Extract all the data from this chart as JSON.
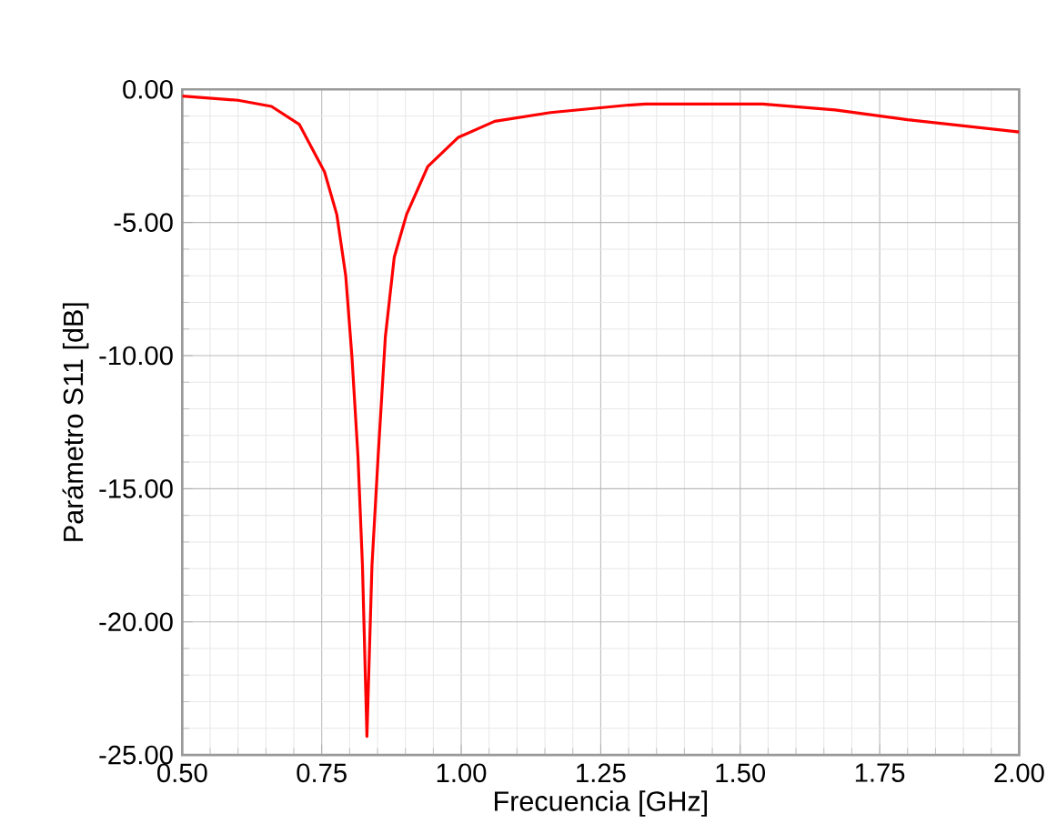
{
  "chart_data": {
    "type": "line",
    "xlabel": "Frecuencia [GHz]",
    "ylabel": "Parámetro S11 [dB]",
    "xlim": [
      0.5,
      2.0
    ],
    "ylim": [
      -25,
      0
    ],
    "xticks": [
      {
        "value": 0.5,
        "label": "0.50"
      },
      {
        "value": 0.75,
        "label": "0.75"
      },
      {
        "value": 1.0,
        "label": "1.00"
      },
      {
        "value": 1.25,
        "label": "1.25"
      },
      {
        "value": 1.5,
        "label": "1.50"
      },
      {
        "value": 1.75,
        "label": "1.75"
      },
      {
        "value": 2.0,
        "label": "2.00"
      }
    ],
    "yticks": [
      {
        "value": -25,
        "label": "-25.00"
      },
      {
        "value": -20,
        "label": "-20.00"
      },
      {
        "value": -15,
        "label": "-15.00"
      },
      {
        "value": -10,
        "label": "-10.00"
      },
      {
        "value": -5,
        "label": "-5.00"
      },
      {
        "value": 0,
        "label": "0.00"
      }
    ],
    "grid": true,
    "marker": "none",
    "line_style": "solid",
    "series": [
      {
        "color": "#ff0000",
        "x": [
          0.5,
          0.6,
          0.66,
          0.71,
          0.755,
          0.777,
          0.793,
          0.804,
          0.815,
          0.823,
          0.831,
          0.84,
          0.851,
          0.864,
          0.88,
          0.902,
          0.94,
          0.995,
          1.06,
          1.16,
          1.3,
          1.33,
          1.54,
          1.67,
          1.8,
          2.0
        ],
        "values": [
          -0.25,
          -0.41,
          -0.64,
          -1.32,
          -3.1,
          -4.7,
          -7.0,
          -10.0,
          -13.8,
          -17.9,
          -24.3,
          -17.9,
          -13.8,
          -9.3,
          -6.3,
          -4.7,
          -2.9,
          -1.8,
          -1.2,
          -0.87,
          -0.59,
          -0.55,
          -0.55,
          -0.77,
          -1.14,
          -1.6
        ]
      }
    ]
  }
}
